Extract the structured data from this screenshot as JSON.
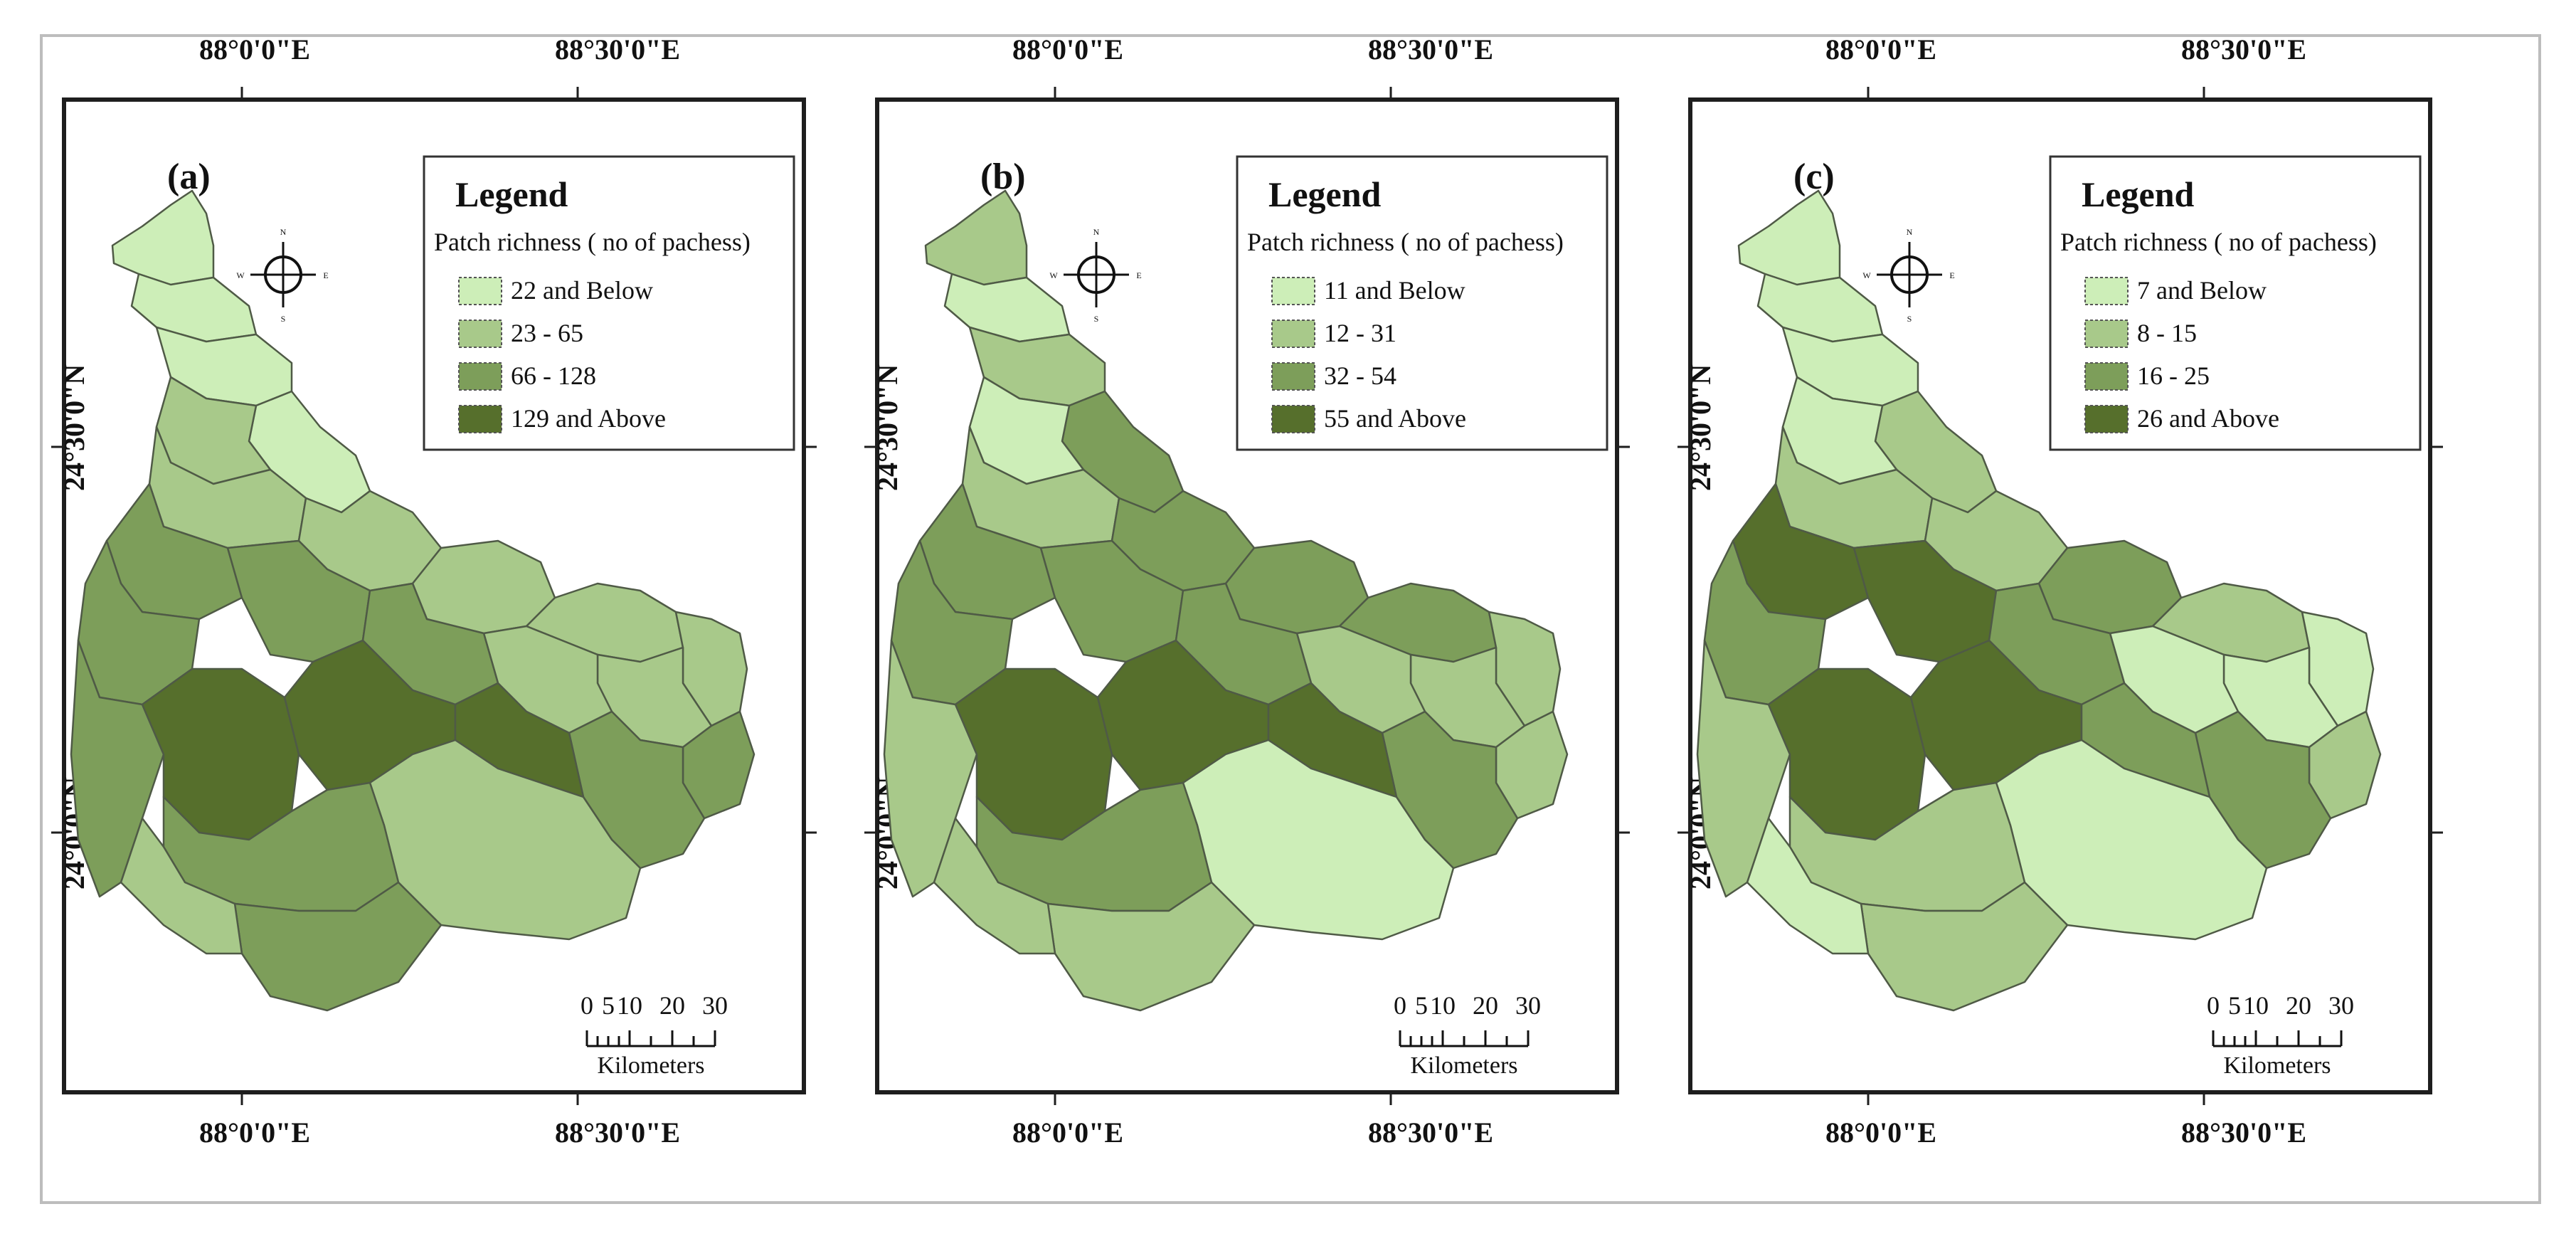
{
  "figure": {
    "colors": {
      "class1": "#cdeeb8",
      "class2": "#a8c98a",
      "class3": "#7d9e5a",
      "class4": "#566f2c",
      "outline": "#4f5a46",
      "frame": "#1e1e1e"
    },
    "coords": {
      "lon_left": "88°0'0\"E",
      "lon_right": "88°30'0\"E",
      "lat_upper": "24°30'0\"N",
      "lat_lower": "24°0'0\"N"
    },
    "north_arrow": {
      "n": "N",
      "s": "S",
      "e": "E",
      "w": "W"
    },
    "scalebar": {
      "ticks": [
        "0",
        "5",
        "10",
        "20",
        "30"
      ],
      "unit": "Kilometers"
    },
    "panels": [
      {
        "tag": "(a)",
        "legend_title": "Legend",
        "legend_subtitle": "Patch richness ( no of pachess)",
        "classes": [
          "22 and Below",
          "23 - 65",
          "66 - 128",
          "129 and Above"
        ],
        "region_classes": [
          1,
          1,
          1,
          1,
          2,
          2,
          2,
          2,
          2,
          2,
          2,
          2,
          3,
          3,
          3,
          3,
          3,
          3,
          3,
          4,
          4,
          4,
          2,
          3,
          3,
          2
        ]
      },
      {
        "tag": "(b)",
        "legend_title": "Legend",
        "legend_subtitle": "Patch richness ( no of pachess)",
        "classes": [
          "11 and Below",
          "12 - 31",
          "32 - 54",
          "55 and Above"
        ],
        "region_classes": [
          2,
          1,
          2,
          3,
          1,
          2,
          3,
          3,
          3,
          2,
          2,
          2,
          3,
          3,
          3,
          2,
          3,
          3,
          2,
          4,
          4,
          4,
          1,
          3,
          2,
          2
        ]
      },
      {
        "tag": "(c)",
        "legend_title": "Legend",
        "legend_subtitle": "Patch richness ( no of pachess)",
        "classes": [
          "7 and Below",
          "8 - 15",
          "16 - 25",
          "26 and Above"
        ],
        "region_classes": [
          1,
          1,
          1,
          2,
          1,
          2,
          2,
          3,
          2,
          1,
          1,
          1,
          4,
          4,
          3,
          2,
          3,
          3,
          2,
          4,
          4,
          3,
          1,
          2,
          2,
          1
        ]
      }
    ]
  }
}
